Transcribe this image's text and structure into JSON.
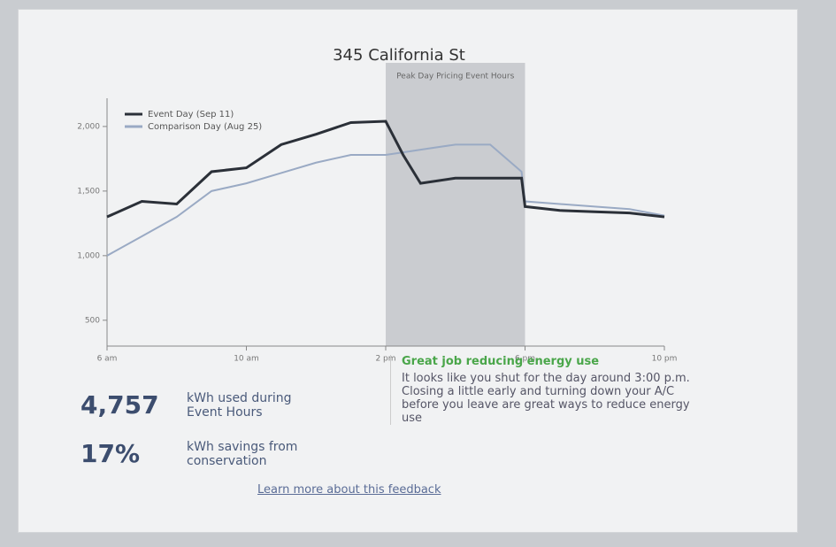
{
  "chart_data": {
    "type": "line",
    "title": "345 California St",
    "x": [
      6,
      7,
      8,
      9,
      10,
      11,
      12,
      13,
      14,
      14.5,
      15,
      16,
      17,
      17.9,
      18,
      19,
      20,
      21,
      22
    ],
    "series": [
      {
        "name": "Event Day (Sep 11)",
        "color": "#2b3038",
        "values": [
          1300,
          1420,
          1400,
          1650,
          1680,
          1860,
          1940,
          2030,
          2040,
          1780,
          1560,
          1600,
          1600,
          1600,
          1380,
          1350,
          1340,
          1330,
          1300
        ]
      },
      {
        "name": "Comparison Day (Aug 25)",
        "color": "#9aaac4",
        "values": [
          1000,
          1150,
          1300,
          1500,
          1560,
          1640,
          1720,
          1780,
          1780,
          1800,
          1820,
          1860,
          1860,
          1650,
          1420,
          1400,
          1380,
          1360,
          1310
        ]
      }
    ],
    "xlim": [
      6,
      22
    ],
    "xticks": [
      {
        "value": 6,
        "label": "6 am"
      },
      {
        "value": 10,
        "label": "10 am"
      },
      {
        "value": 14,
        "label": "2 pm"
      },
      {
        "value": 18,
        "label": "6 pm"
      },
      {
        "value": 22,
        "label": "10 pm"
      }
    ],
    "ylim": [
      300,
      2150
    ],
    "yticks": [
      500,
      {
        "value": 1000,
        "label": "1,000"
      },
      {
        "value": 1500,
        "label": "1,500"
      },
      {
        "value": 2000,
        "label": "2,000"
      }
    ],
    "shaded_region": {
      "label": "Peak Day Pricing Event Hours",
      "x": [
        14,
        18
      ]
    },
    "legend": "upper left"
  },
  "stats": [
    {
      "value": "4,757",
      "label": "kWh used during Event Hours"
    },
    {
      "value": "17%",
      "label": "kWh savings from conservation"
    }
  ],
  "feedback": {
    "title": "Great job reducing energy use",
    "body": "It looks like you shut for the day around 3:00 p.m. Closing a little early and turning down your A/C before you leave are great ways to reduce energy use"
  },
  "link": "Learn more about this feedback"
}
